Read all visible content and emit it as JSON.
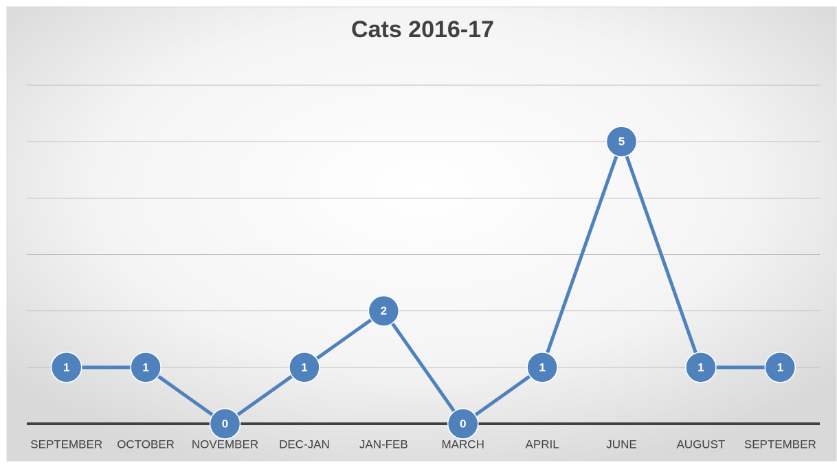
{
  "chart_data": {
    "type": "line",
    "title": "Cats 2016-17",
    "categories": [
      "SEPTEMBER",
      "OCTOBER",
      "NOVEMBER",
      "DEC-JAN",
      "JAN-FEB",
      "MARCH",
      "APRIL",
      "JUNE",
      "AUGUST",
      "SEPTEMBER"
    ],
    "values": [
      1,
      1,
      0,
      1,
      2,
      0,
      1,
      5,
      1,
      1
    ],
    "color": "#4f81bd",
    "ylim": [
      0,
      6
    ],
    "yticks": [
      0,
      1,
      2,
      3,
      4,
      5,
      6
    ],
    "grid": true
  }
}
